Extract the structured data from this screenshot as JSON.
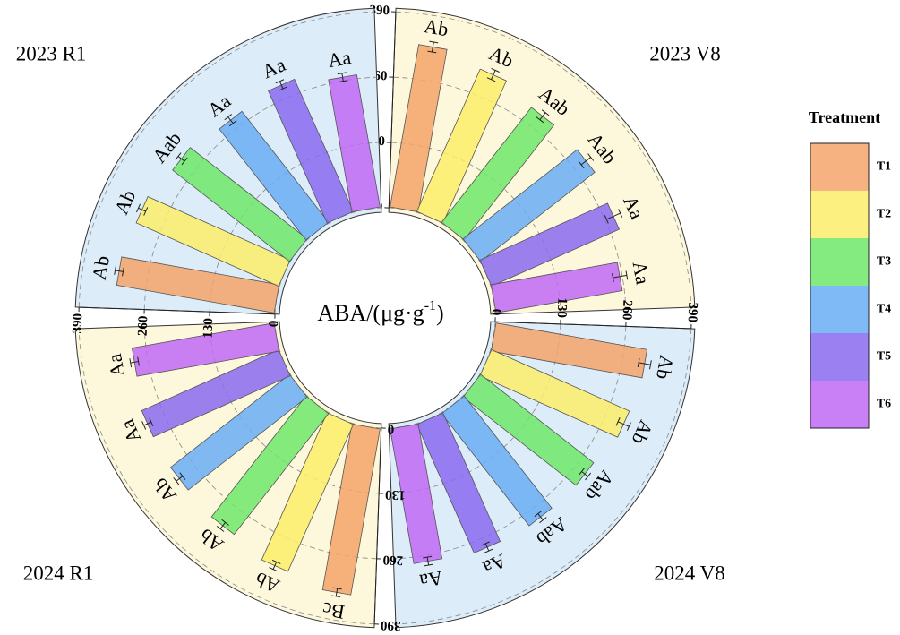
{
  "legend_title": "Treatment",
  "center_label": {
    "text": "ABA/(μg·g",
    "sup": "-1",
    "close": ")"
  },
  "chart_data": [
    {
      "type": "polar-bar",
      "title": "2023 V8",
      "categories": [
        "T1",
        "T2",
        "T3",
        "T4",
        "T5",
        "T6"
      ],
      "values": [
        328,
        310,
        290,
        288,
        278,
        255
      ],
      "errors": [
        10,
        10,
        9,
        12,
        15,
        14
      ],
      "annotations": [
        "Ab",
        "Ab",
        "Aab",
        "Aab",
        "Aa",
        "Aa"
      ],
      "colors": [
        "#f4a46a",
        "#fcee6a",
        "#6ee86a",
        "#6aaef4",
        "#8a6af0",
        "#c06af4"
      ],
      "background": "#fdf8dc",
      "ylim": [
        0,
        390
      ],
      "yticks": [
        0,
        130,
        260,
        390
      ],
      "grid": true
    },
    {
      "type": "polar-bar",
      "title": "2024 V8",
      "categories": [
        "T1",
        "T2",
        "T3",
        "T4",
        "T5",
        "T6"
      ],
      "values": [
        305,
        300,
        285,
        283,
        280,
        272
      ],
      "errors": [
        12,
        12,
        8,
        8,
        8,
        8
      ],
      "annotations": [
        "Ab",
        "Ab",
        "Aab",
        "Aab",
        "Aa",
        "Aa"
      ],
      "colors": [
        "#f4a46a",
        "#fcee6a",
        "#6ee86a",
        "#6aaef4",
        "#8a6af0",
        "#c06af4"
      ],
      "background": "#dcecf8",
      "ylim": [
        0,
        390
      ],
      "yticks": [
        0,
        130,
        260,
        390
      ],
      "grid": true
    },
    {
      "type": "polar-bar",
      "title": "2024 R1",
      "categories": [
        "T1",
        "T2",
        "T3",
        "T4",
        "T5",
        "T6"
      ],
      "values": [
        335,
        320,
        305,
        300,
        298,
        287
      ],
      "errors": [
        8,
        8,
        8,
        8,
        8,
        8
      ],
      "annotations": [
        "Bc",
        "Ab",
        "Ab",
        "Ab",
        "Aa",
        "Aa"
      ],
      "colors": [
        "#f4a46a",
        "#fcee6a",
        "#6ee86a",
        "#6aaef4",
        "#8a6af0",
        "#c06af4"
      ],
      "background": "#fdf8dc",
      "ylim": [
        0,
        390
      ],
      "yticks": [
        0,
        130,
        260,
        390
      ],
      "grid": true
    },
    {
      "type": "polar-bar",
      "title": "2023 R1",
      "categories": [
        "T1",
        "T2",
        "T3",
        "T4",
        "T5",
        "T6"
      ],
      "values": [
        318,
        310,
        295,
        280,
        288,
        267
      ],
      "errors": [
        8,
        8,
        8,
        8,
        8,
        8
      ],
      "annotations": [
        "Ab",
        "Ab",
        "Aab",
        "Aa",
        "Aa",
        "Aa"
      ],
      "colors": [
        "#f4a46a",
        "#fcee6a",
        "#6ee86a",
        "#6aaef4",
        "#8a6af0",
        "#c06af4"
      ],
      "background": "#dcecf8",
      "ylim": [
        0,
        390
      ],
      "yticks": [
        0,
        130,
        260,
        390
      ],
      "grid": true
    }
  ]
}
